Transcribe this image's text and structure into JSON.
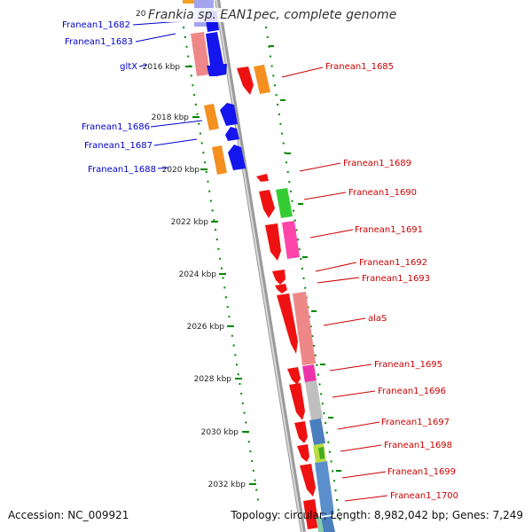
{
  "header": {
    "title": "Frankia sp. EAN1pec, complete genome"
  },
  "footer": {
    "accession": "Accession: NC_009921",
    "summary": "Topology: circular; Length: 8,982,042 bp; Genes: 7,249"
  },
  "ticks": [
    "2016 kbp",
    "2018 kbp",
    "2020 kbp",
    "2022 kbp",
    "2024 kbp",
    "2026 kbp",
    "2028 kbp",
    "2030 kbp",
    "2032 kbp"
  ],
  "left_genes": [
    "Franean1_1682",
    "Franean1_1683",
    "gltX",
    "Franean1_1686",
    "Franean1_1687",
    "Franean1_1688"
  ],
  "right_genes": [
    "Franean1_1685",
    "Franean1_1689",
    "Franean1_1690",
    "Franean1_1691",
    "Franean1_1692",
    "Franean1_1693",
    "alaS",
    "Franean1_1695",
    "Franean1_1696",
    "Franean1_1697",
    "Franean1_1698",
    "Franean1_1699",
    "Franean1_1700"
  ],
  "colors": {
    "left_label": "#0000cc",
    "right_label": "#cc0000",
    "tick_green": "#008800",
    "backbone": "#999999"
  }
}
